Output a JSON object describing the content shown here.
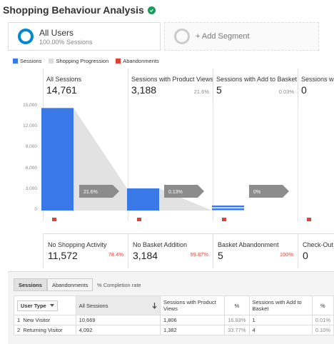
{
  "header": {
    "title": "Shopping Behaviour Analysis",
    "verified_icon": "check-circle-icon"
  },
  "segments": {
    "active": {
      "name": "All Users",
      "sub": "100.00% Sessions"
    },
    "add_label": "+ Add Segment"
  },
  "legend": [
    {
      "label": "Sessions",
      "color": "#3b78e7"
    },
    {
      "label": "Shopping Progression",
      "color": "#dddddd"
    },
    {
      "label": "Abandonments",
      "color": "#db4437"
    }
  ],
  "stages": [
    {
      "name": "All Sessions",
      "value": "14,761",
      "pct": ""
    },
    {
      "name": "Sessions with Product Views",
      "value": "3,188",
      "pct": "21.6%"
    },
    {
      "name": "Sessions with Add to Basket",
      "value": "5",
      "pct": "0.03%"
    },
    {
      "name": "Sessions with Check-Out",
      "value": "0",
      "pct": ""
    }
  ],
  "chart_data": {
    "type": "bar",
    "categories": [
      "All Sessions",
      "Sessions with Product Views",
      "Sessions with Add to Basket",
      "Sessions with Check-Out"
    ],
    "values": [
      14761,
      3188,
      5,
      0
    ],
    "ylim": [
      0,
      15000
    ],
    "yticks": [
      "15,000",
      "12,000",
      "9,000",
      "6,000",
      "3,000",
      "0"
    ],
    "ytick_values": [
      15000,
      12000,
      9000,
      6000,
      3000,
      0
    ],
    "progression_labels": [
      "21.6%",
      "0.13%",
      "0%"
    ],
    "grid": true
  },
  "abandonments": [
    {
      "name": "No Shopping Activity",
      "value": "11,572",
      "pct": "78.4%"
    },
    {
      "name": "No Basket Addition",
      "value": "3,184",
      "pct": "99.87%"
    },
    {
      "name": "Basket Abandonment",
      "value": "5",
      "pct": "100%"
    },
    {
      "name": "Check-Out Abandonment",
      "value": "0",
      "pct": ""
    }
  ],
  "table": {
    "tabs": [
      "Sessions",
      "Abandonments"
    ],
    "completion_label": "% Completion rate",
    "headers": {
      "user_type": "User Type",
      "all_sessions": "All Sessions",
      "product_views": "Sessions with Product Views",
      "pct1": "%",
      "add_to_basket": "Sessions with Add to Basket",
      "pct2": "%"
    },
    "rows": [
      {
        "idx": "1",
        "type": "New Visitor",
        "all": "10,669",
        "views": "1,806",
        "pct1": "16.93%",
        "basket": "1",
        "pct2": "0.01%"
      },
      {
        "idx": "2",
        "type": "Returning Visitor",
        "all": "4,092",
        "views": "1,382",
        "pct1": "33.77%",
        "basket": "4",
        "pct2": "0.10%"
      }
    ]
  }
}
